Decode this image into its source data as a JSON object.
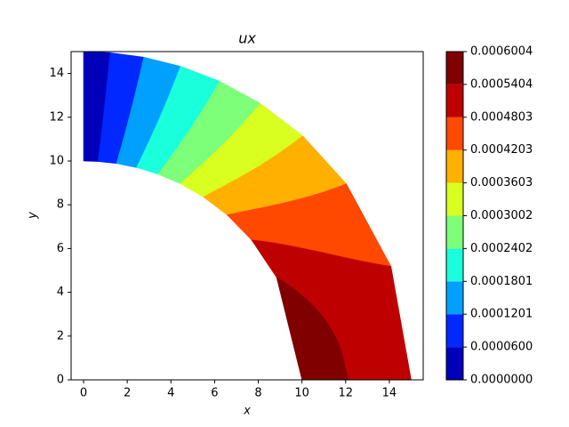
{
  "chart_data": {
    "type": "contour",
    "title": "ux",
    "xlabel": "x",
    "ylabel": "y",
    "xlim": [
      -0.57,
      15.55
    ],
    "ylim": [
      0,
      15
    ],
    "xticks": [
      0,
      2,
      4,
      6,
      8,
      10,
      12,
      14
    ],
    "yticks": [
      0,
      2,
      4,
      6,
      8,
      10,
      12,
      14
    ],
    "levels": [
      {
        "value": 0,
        "label": "0.0000000"
      },
      {
        "value": 6e-05,
        "label": "0.0000600"
      },
      0.0001201,
      0.0001801,
      0.0002402,
      0.0003002,
      0.0003603,
      0.0004203,
      0.0004803,
      0.0005404,
      0.0006004
    ],
    "colors": [
      "#0000bb",
      "#0028ff",
      "#00a0ff",
      "#1affdc",
      "#7dff7a",
      "#d8ff1f",
      "#ffb000",
      "#ff4800",
      "#bf0000",
      "#800000"
    ]
  }
}
